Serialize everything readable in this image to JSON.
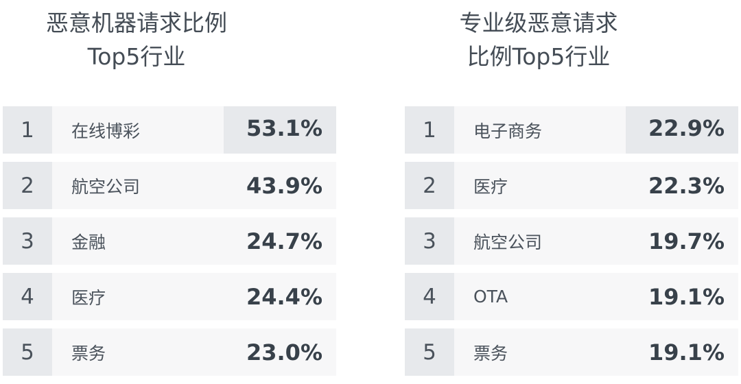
{
  "chart_data": [
    {
      "type": "table",
      "title": "恶意机器请求比例Top5行业",
      "title_lines": [
        "恶意机器请求比例",
        "Top5行业"
      ],
      "rows": [
        {
          "rank": "1",
          "industry": "在线博彩",
          "value": "53.1%"
        },
        {
          "rank": "2",
          "industry": "航空公司",
          "value": "43.9%"
        },
        {
          "rank": "3",
          "industry": "金融",
          "value": "24.7%"
        },
        {
          "rank": "4",
          "industry": "医疗",
          "value": "24.4%"
        },
        {
          "rank": "5",
          "industry": "票务",
          "value": "23.0%"
        }
      ],
      "values": [
        53.1,
        43.9,
        24.7,
        24.4,
        23.0
      ]
    },
    {
      "type": "table",
      "title": "专业级恶意请求比例Top5行业",
      "title_lines": [
        "专业级恶意请求",
        "比例Top5行业"
      ],
      "rows": [
        {
          "rank": "1",
          "industry": "电子商务",
          "value": "22.9%"
        },
        {
          "rank": "2",
          "industry": "医疗",
          "value": "22.3%"
        },
        {
          "rank": "3",
          "industry": "航空公司",
          "value": "19.7%"
        },
        {
          "rank": "4",
          "industry": "OTA",
          "value": "19.1%"
        },
        {
          "rank": "5",
          "industry": "票务",
          "value": "19.1%"
        }
      ],
      "values": [
        22.9,
        22.3,
        19.7,
        19.1,
        19.1
      ]
    }
  ],
  "colors": {
    "rank_bg": "#e7e9ec",
    "row_bg": "#f7f7f8",
    "text": "#38414a"
  }
}
